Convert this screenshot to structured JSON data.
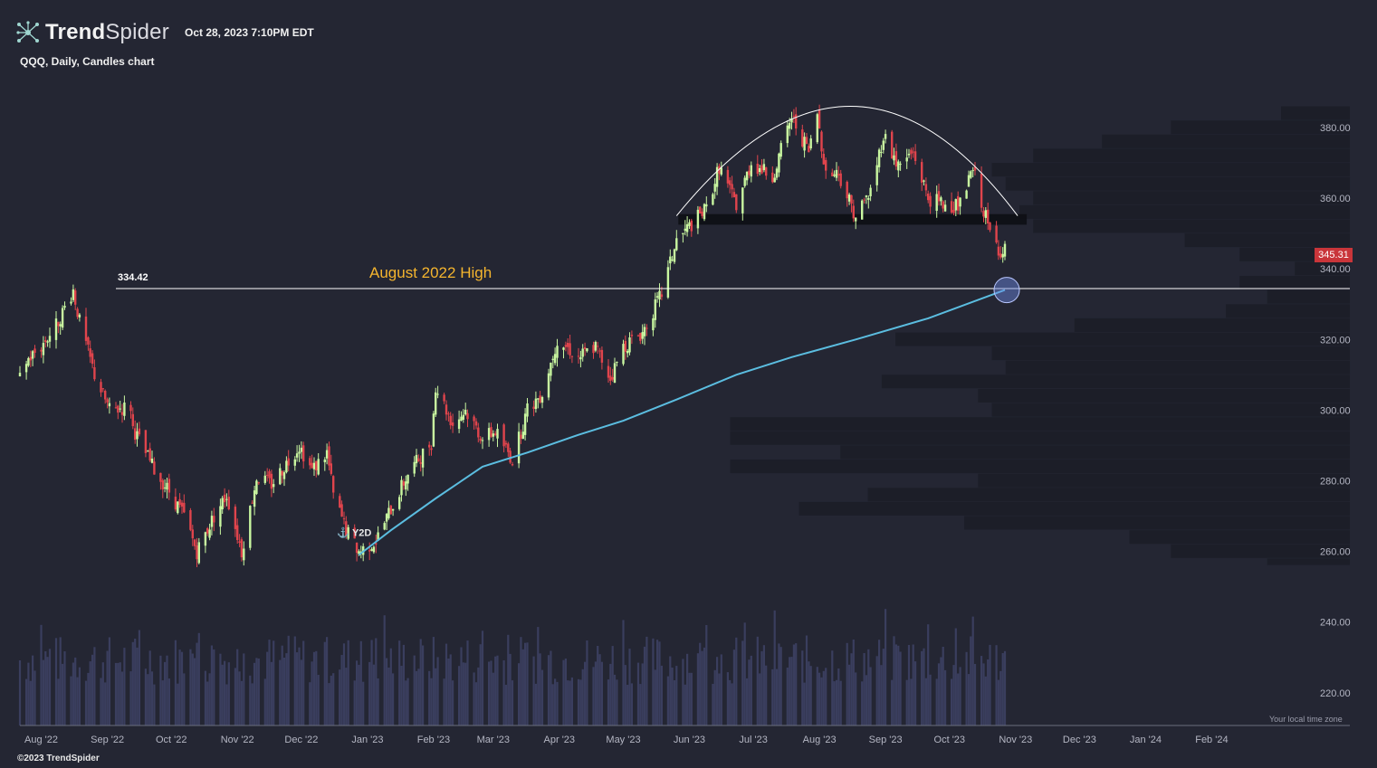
{
  "header": {
    "brand_bold": "Trend",
    "brand_light": "Spider",
    "timestamp": "Oct 28, 2023 7:10PM EDT",
    "subtitle": "QQQ, Daily, Candles chart",
    "copyright": "©2023 TrendSpider",
    "timezone_note": "Your local time zone"
  },
  "colors": {
    "background": "#242633",
    "up_candle": "#c9f7a0",
    "down_candle": "#e0444c",
    "ma_line": "#5bbde0",
    "volume_bar": "#3a3e5e",
    "volume_profile": "#1c1e28",
    "price_tag": "#c9353a",
    "annotation": "#f5b52e"
  },
  "chart_data": {
    "type": "candlestick",
    "symbol": "QQQ",
    "interval": "Daily",
    "y_axis": {
      "ticks": [
        "380.00",
        "360.00",
        "340.00",
        "320.00",
        "300.00",
        "280.00",
        "260.00",
        "240.00",
        "220.00"
      ],
      "ylim": [
        215,
        392
      ]
    },
    "x_axis": {
      "ticks": [
        "Aug '22",
        "Sep '22",
        "Oct '22",
        "Nov '22",
        "Dec '22",
        "Jan '23",
        "Feb '23",
        "Mar '23",
        "Apr '23",
        "May '23",
        "Jun '23",
        "Jul '23",
        "Aug '23",
        "Sep '23",
        "Oct '23",
        "Nov '23",
        "Dec '23",
        "Jan '24",
        "Feb '24"
      ]
    },
    "last_price": "345.31",
    "annotations": {
      "high_label": "334.42",
      "high_value": 334.42,
      "high_text": "August 2022 High",
      "anchor_label": "Y2D"
    },
    "close_path": [
      [
        "2022-07-22",
        312
      ],
      [
        "2022-08-01",
        318
      ],
      [
        "2022-08-08",
        324
      ],
      [
        "2022-08-16",
        334
      ],
      [
        "2022-08-19",
        325
      ],
      [
        "2022-08-26",
        310
      ],
      [
        "2022-09-02",
        300
      ],
      [
        "2022-09-12",
        301
      ],
      [
        "2022-09-13",
        295
      ],
      [
        "2022-09-23",
        283
      ],
      [
        "2022-09-30",
        277
      ],
      [
        "2022-10-07",
        270
      ],
      [
        "2022-10-13",
        260
      ],
      [
        "2022-10-21",
        270
      ],
      [
        "2022-10-27",
        276
      ],
      [
        "2022-11-03",
        260
      ],
      [
        "2022-11-10",
        281
      ],
      [
        "2022-11-17",
        279
      ],
      [
        "2022-11-30",
        290
      ],
      [
        "2022-12-06",
        283
      ],
      [
        "2022-12-13",
        288
      ],
      [
        "2022-12-16",
        276
      ],
      [
        "2022-12-22",
        266
      ],
      [
        "2022-12-28",
        260
      ],
      [
        "2023-01-05",
        263
      ],
      [
        "2023-01-12",
        272
      ],
      [
        "2023-01-20",
        282
      ],
      [
        "2023-01-31",
        291
      ],
      [
        "2023-02-02",
        307
      ],
      [
        "2023-02-10",
        296
      ],
      [
        "2023-02-16",
        300
      ],
      [
        "2023-02-24",
        292
      ],
      [
        "2023-03-02",
        294
      ],
      [
        "2023-03-10",
        286
      ],
      [
        "2023-03-17",
        300
      ],
      [
        "2023-03-24",
        305
      ],
      [
        "2023-03-31",
        320
      ],
      [
        "2023-04-10",
        315
      ],
      [
        "2023-04-18",
        318
      ],
      [
        "2023-04-25",
        309
      ],
      [
        "2023-05-01",
        318
      ],
      [
        "2023-05-10",
        322
      ],
      [
        "2023-05-19",
        333
      ],
      [
        "2023-05-26",
        348
      ],
      [
        "2023-06-01",
        352
      ],
      [
        "2023-06-09",
        357
      ],
      [
        "2023-06-15",
        369
      ],
      [
        "2023-06-23",
        358
      ],
      [
        "2023-06-30",
        370
      ],
      [
        "2023-07-10",
        366
      ],
      [
        "2023-07-19",
        383
      ],
      [
        "2023-07-27",
        373
      ],
      [
        "2023-07-31",
        384
      ],
      [
        "2023-08-04",
        367
      ],
      [
        "2023-08-10",
        367
      ],
      [
        "2023-08-18",
        355
      ],
      [
        "2023-08-25",
        362
      ],
      [
        "2023-08-31",
        378
      ],
      [
        "2023-09-07",
        369
      ],
      [
        "2023-09-14",
        373
      ],
      [
        "2023-09-21",
        360
      ],
      [
        "2023-09-29",
        358
      ],
      [
        "2023-10-06",
        358
      ],
      [
        "2023-10-12",
        368
      ],
      [
        "2023-10-20",
        350
      ],
      [
        "2023-10-26",
        344
      ],
      [
        "2023-10-27",
        345.31
      ]
    ],
    "ma_path": [
      [
        "2022-12-28",
        259
      ],
      [
        "2023-01-12",
        266
      ],
      [
        "2023-02-02",
        275
      ],
      [
        "2023-02-24",
        284
      ],
      [
        "2023-03-17",
        288
      ],
      [
        "2023-04-10",
        293
      ],
      [
        "2023-05-01",
        297
      ],
      [
        "2023-05-26",
        303
      ],
      [
        "2023-06-23",
        310
      ],
      [
        "2023-07-19",
        315
      ],
      [
        "2023-08-18",
        320
      ],
      [
        "2023-09-21",
        326
      ],
      [
        "2023-10-27",
        334
      ]
    ],
    "pattern": {
      "arc_start": [
        "2023-05-26",
        355
      ],
      "arc_peak": [
        "2023-08-17",
        386
      ],
      "arc_end": [
        "2023-11-02",
        355
      ],
      "neckline_range": [
        352.5,
        355.5
      ]
    },
    "volume_profile": [
      [
        256,
        258,
        0.06
      ],
      [
        258,
        262,
        0.13
      ],
      [
        262,
        266,
        0.16
      ],
      [
        266,
        270,
        0.28
      ],
      [
        270,
        274,
        0.4
      ],
      [
        274,
        278,
        0.35
      ],
      [
        278,
        282,
        0.27
      ],
      [
        282,
        286,
        0.45
      ],
      [
        286,
        290,
        0.37
      ],
      [
        290,
        294,
        0.45
      ],
      [
        294,
        298,
        0.45
      ],
      [
        298,
        302,
        0.26
      ],
      [
        302,
        306,
        0.27
      ],
      [
        306,
        310,
        0.34
      ],
      [
        310,
        314,
        0.25
      ],
      [
        314,
        318,
        0.26
      ],
      [
        318,
        322,
        0.33
      ],
      [
        322,
        326,
        0.2
      ],
      [
        326,
        330,
        0.09
      ],
      [
        330,
        334,
        0.06
      ],
      [
        334,
        338,
        0.08
      ],
      [
        338,
        342,
        0.04
      ],
      [
        342,
        346,
        0.08
      ],
      [
        346,
        350,
        0.12
      ],
      [
        350,
        354,
        0.23
      ],
      [
        354,
        358,
        0.24
      ],
      [
        358,
        362,
        0.23
      ],
      [
        362,
        366,
        0.25
      ],
      [
        366,
        370,
        0.26
      ],
      [
        370,
        374,
        0.23
      ],
      [
        374,
        378,
        0.18
      ],
      [
        378,
        382,
        0.13
      ],
      [
        382,
        386,
        0.05
      ]
    ]
  }
}
